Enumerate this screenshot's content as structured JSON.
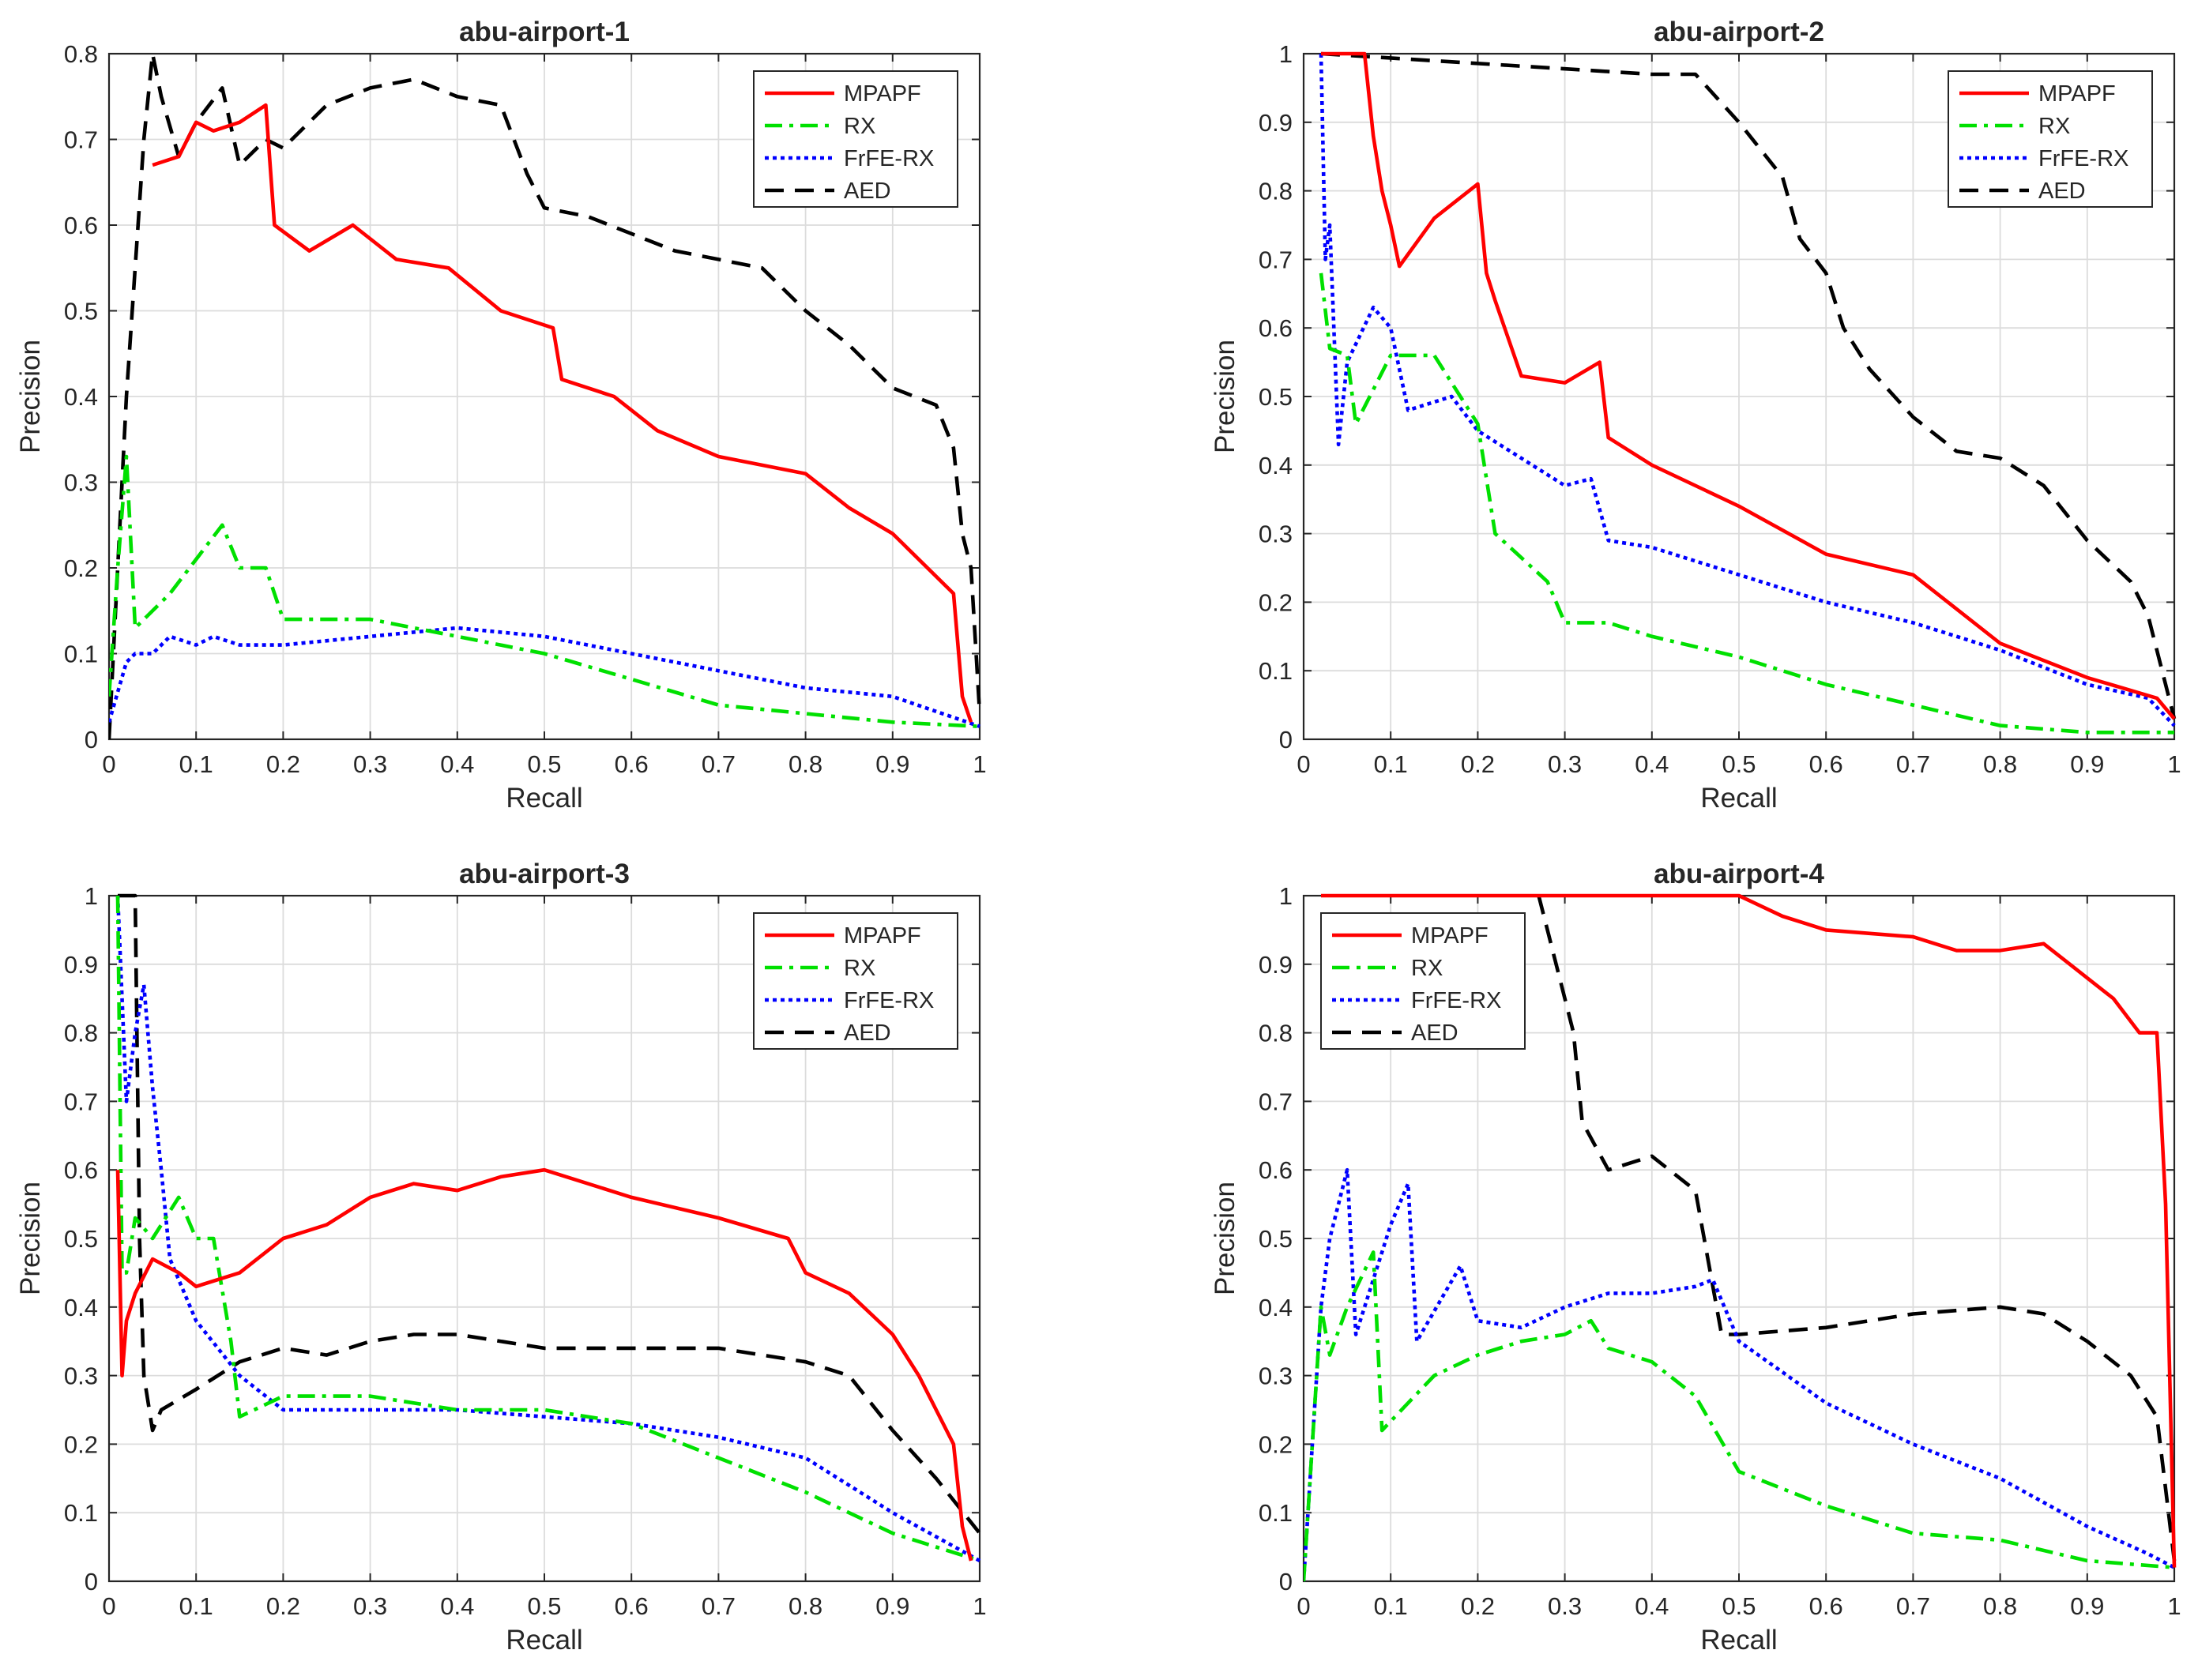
{
  "chart_data": [
    {
      "type": "line",
      "title": "abu-airport-1",
      "xlabel": "Recall",
      "ylabel": "Precision",
      "xlim": [
        0,
        1
      ],
      "ylim": [
        0,
        0.8
      ],
      "xticks": [
        "0",
        "0.1",
        "0.2",
        "0.3",
        "0.4",
        "0.5",
        "0.6",
        "0.7",
        "0.8",
        "0.9",
        "1"
      ],
      "yticks": [
        "0",
        "0.1",
        "0.2",
        "0.3",
        "0.4",
        "0.5",
        "0.6",
        "0.7",
        "0.8"
      ],
      "grid": true,
      "legend_position": "top-right",
      "series": [
        {
          "name": "MPAPF",
          "color": "#ff0000",
          "dash": "solid",
          "x": [
            0.05,
            0.08,
            0.1,
            0.12,
            0.15,
            0.18,
            0.19,
            0.23,
            0.28,
            0.33,
            0.39,
            0.45,
            0.51,
            0.52,
            0.58,
            0.63,
            0.7,
            0.8,
            0.85,
            0.9,
            0.97,
            0.98,
            0.99
          ],
          "y": [
            0.67,
            0.68,
            0.72,
            0.71,
            0.72,
            0.74,
            0.6,
            0.57,
            0.6,
            0.56,
            0.55,
            0.5,
            0.48,
            0.42,
            0.4,
            0.36,
            0.33,
            0.31,
            0.27,
            0.24,
            0.17,
            0.05,
            0.02
          ]
        },
        {
          "name": "RX",
          "color": "#00e000",
          "dash": "dashdot",
          "x": [
            0,
            0.01,
            0.02,
            0.03,
            0.05,
            0.07,
            0.1,
            0.13,
            0.15,
            0.18,
            0.2,
            0.3,
            0.4,
            0.5,
            0.6,
            0.7,
            0.8,
            0.9,
            1.0
          ],
          "y": [
            0.05,
            0.2,
            0.33,
            0.13,
            0.15,
            0.17,
            0.21,
            0.25,
            0.2,
            0.2,
            0.14,
            0.14,
            0.12,
            0.1,
            0.07,
            0.04,
            0.03,
            0.02,
            0.015
          ]
        },
        {
          "name": "FrFE-RX",
          "color": "#0000ff",
          "dash": "dotted",
          "x": [
            0,
            0.02,
            0.03,
            0.05,
            0.07,
            0.1,
            0.12,
            0.15,
            0.2,
            0.3,
            0.4,
            0.5,
            0.6,
            0.7,
            0.8,
            0.9,
            1.0
          ],
          "y": [
            0.02,
            0.09,
            0.1,
            0.1,
            0.12,
            0.11,
            0.12,
            0.11,
            0.11,
            0.12,
            0.13,
            0.12,
            0.1,
            0.08,
            0.06,
            0.05,
            0.015
          ]
        },
        {
          "name": "AED",
          "color": "#000000",
          "dash": "dashed",
          "x": [
            0,
            0.02,
            0.04,
            0.05,
            0.06,
            0.08,
            0.1,
            0.13,
            0.15,
            0.18,
            0.2,
            0.25,
            0.3,
            0.35,
            0.4,
            0.45,
            0.48,
            0.5,
            0.55,
            0.6,
            0.65,
            0.7,
            0.75,
            0.8,
            0.85,
            0.9,
            0.95,
            0.97,
            0.98,
            0.99,
            1.0
          ],
          "y": [
            0,
            0.4,
            0.7,
            0.8,
            0.75,
            0.68,
            0.72,
            0.76,
            0.67,
            0.7,
            0.69,
            0.74,
            0.76,
            0.77,
            0.75,
            0.74,
            0.66,
            0.62,
            0.61,
            0.59,
            0.57,
            0.56,
            0.55,
            0.5,
            0.46,
            0.41,
            0.39,
            0.34,
            0.24,
            0.2,
            0.03
          ]
        }
      ]
    },
    {
      "type": "line",
      "title": "abu-airport-2",
      "xlabel": "Recall",
      "ylabel": "Precision",
      "xlim": [
        0,
        1
      ],
      "ylim": [
        0,
        1
      ],
      "xticks": [
        "0",
        "0.1",
        "0.2",
        "0.3",
        "0.4",
        "0.5",
        "0.6",
        "0.7",
        "0.8",
        "0.9",
        "1"
      ],
      "yticks": [
        "0",
        "0.1",
        "0.2",
        "0.3",
        "0.4",
        "0.5",
        "0.6",
        "0.7",
        "0.8",
        "0.9",
        "1"
      ],
      "grid": true,
      "legend_position": "top-right",
      "series": [
        {
          "name": "MPAPF",
          "color": "#ff0000",
          "dash": "solid",
          "x": [
            0.02,
            0.07,
            0.08,
            0.09,
            0.1,
            0.11,
            0.15,
            0.2,
            0.21,
            0.22,
            0.25,
            0.3,
            0.34,
            0.35,
            0.4,
            0.5,
            0.6,
            0.7,
            0.8,
            0.9,
            0.98,
            1.0
          ],
          "y": [
            1.0,
            1.0,
            0.88,
            0.8,
            0.75,
            0.69,
            0.76,
            0.81,
            0.68,
            0.64,
            0.53,
            0.52,
            0.55,
            0.44,
            0.4,
            0.34,
            0.27,
            0.24,
            0.14,
            0.09,
            0.06,
            0.03
          ]
        },
        {
          "name": "RX",
          "color": "#00e000",
          "dash": "dashdot",
          "x": [
            0.02,
            0.03,
            0.05,
            0.06,
            0.1,
            0.15,
            0.2,
            0.22,
            0.28,
            0.3,
            0.35,
            0.4,
            0.5,
            0.6,
            0.7,
            0.8,
            0.9,
            1.0
          ],
          "y": [
            0.68,
            0.57,
            0.56,
            0.46,
            0.56,
            0.56,
            0.46,
            0.3,
            0.23,
            0.17,
            0.17,
            0.15,
            0.12,
            0.08,
            0.05,
            0.02,
            0.01,
            0.01
          ]
        },
        {
          "name": "FrFE-RX",
          "color": "#0000ff",
          "dash": "dotted",
          "x": [
            0.02,
            0.025,
            0.03,
            0.04,
            0.05,
            0.08,
            0.1,
            0.12,
            0.17,
            0.2,
            0.25,
            0.3,
            0.33,
            0.35,
            0.4,
            0.5,
            0.6,
            0.7,
            0.8,
            0.9,
            0.97,
            1.0
          ],
          "y": [
            1.0,
            0.7,
            0.75,
            0.43,
            0.55,
            0.63,
            0.6,
            0.48,
            0.5,
            0.45,
            0.41,
            0.37,
            0.38,
            0.29,
            0.28,
            0.24,
            0.2,
            0.17,
            0.13,
            0.08,
            0.06,
            0.02
          ]
        },
        {
          "name": "AED",
          "color": "#000000",
          "dash": "dashed",
          "x": [
            0.02,
            0.4,
            0.45,
            0.5,
            0.55,
            0.57,
            0.6,
            0.62,
            0.65,
            0.7,
            0.75,
            0.8,
            0.85,
            0.9,
            0.95,
            0.97,
            0.99,
            1.0
          ],
          "y": [
            1.0,
            0.97,
            0.97,
            0.9,
            0.82,
            0.73,
            0.68,
            0.6,
            0.54,
            0.47,
            0.42,
            0.41,
            0.37,
            0.29,
            0.23,
            0.18,
            0.08,
            0.03
          ]
        }
      ]
    },
    {
      "type": "line",
      "title": "abu-airport-3",
      "xlabel": "Recall",
      "ylabel": "Precision",
      "xlim": [
        0,
        1
      ],
      "ylim": [
        0,
        1
      ],
      "xticks": [
        "0",
        "0.1",
        "0.2",
        "0.3",
        "0.4",
        "0.5",
        "0.6",
        "0.7",
        "0.8",
        "0.9",
        "1"
      ],
      "yticks": [
        "0",
        "0.1",
        "0.2",
        "0.3",
        "0.4",
        "0.5",
        "0.6",
        "0.7",
        "0.8",
        "0.9",
        "1"
      ],
      "grid": true,
      "legend_position": "top-right",
      "series": [
        {
          "name": "MPAPF",
          "color": "#ff0000",
          "dash": "solid",
          "x": [
            0.01,
            0.015,
            0.02,
            0.03,
            0.05,
            0.08,
            0.1,
            0.15,
            0.2,
            0.25,
            0.3,
            0.35,
            0.4,
            0.45,
            0.5,
            0.6,
            0.7,
            0.78,
            0.8,
            0.85,
            0.9,
            0.93,
            0.95,
            0.97,
            0.98,
            0.99
          ],
          "y": [
            0.6,
            0.3,
            0.38,
            0.42,
            0.47,
            0.45,
            0.43,
            0.45,
            0.5,
            0.52,
            0.56,
            0.58,
            0.57,
            0.59,
            0.6,
            0.56,
            0.53,
            0.5,
            0.45,
            0.42,
            0.36,
            0.3,
            0.25,
            0.2,
            0.08,
            0.03
          ]
        },
        {
          "name": "RX",
          "color": "#00e000",
          "dash": "dashdot",
          "x": [
            0.01,
            0.015,
            0.02,
            0.03,
            0.05,
            0.08,
            0.1,
            0.12,
            0.14,
            0.15,
            0.2,
            0.3,
            0.4,
            0.5,
            0.6,
            0.7,
            0.8,
            0.9,
            1.0
          ],
          "y": [
            1.0,
            0.45,
            0.45,
            0.53,
            0.5,
            0.56,
            0.5,
            0.5,
            0.35,
            0.24,
            0.27,
            0.27,
            0.25,
            0.25,
            0.23,
            0.18,
            0.13,
            0.07,
            0.03
          ]
        },
        {
          "name": "FrFE-RX",
          "color": "#0000ff",
          "dash": "dotted",
          "x": [
            0.01,
            0.02,
            0.03,
            0.04,
            0.05,
            0.06,
            0.07,
            0.1,
            0.15,
            0.2,
            0.3,
            0.4,
            0.5,
            0.6,
            0.7,
            0.8,
            0.9,
            1.0
          ],
          "y": [
            1.0,
            0.7,
            0.8,
            0.87,
            0.72,
            0.6,
            0.47,
            0.38,
            0.3,
            0.25,
            0.25,
            0.25,
            0.24,
            0.23,
            0.21,
            0.18,
            0.1,
            0.03
          ]
        },
        {
          "name": "AED",
          "color": "#000000",
          "dash": "dashed",
          "x": [
            0.01,
            0.03,
            0.035,
            0.04,
            0.05,
            0.06,
            0.1,
            0.15,
            0.2,
            0.25,
            0.3,
            0.35,
            0.4,
            0.5,
            0.6,
            0.7,
            0.8,
            0.85,
            0.9,
            0.95,
            1.0
          ],
          "y": [
            1.0,
            1.0,
            0.5,
            0.3,
            0.22,
            0.25,
            0.28,
            0.32,
            0.34,
            0.33,
            0.35,
            0.36,
            0.36,
            0.34,
            0.34,
            0.34,
            0.32,
            0.3,
            0.22,
            0.15,
            0.07
          ]
        }
      ]
    },
    {
      "type": "line",
      "title": "abu-airport-4",
      "xlabel": "Recall",
      "ylabel": "Precision",
      "xlim": [
        0,
        1
      ],
      "ylim": [
        0,
        1
      ],
      "xticks": [
        "0",
        "0.1",
        "0.2",
        "0.3",
        "0.4",
        "0.5",
        "0.6",
        "0.7",
        "0.8",
        "0.9",
        "1"
      ],
      "yticks": [
        "0",
        "0.1",
        "0.2",
        "0.3",
        "0.4",
        "0.5",
        "0.6",
        "0.7",
        "0.8",
        "0.9",
        "1"
      ],
      "grid": true,
      "legend_position": "top-left",
      "series": [
        {
          "name": "MPAPF",
          "color": "#ff0000",
          "dash": "solid",
          "x": [
            0.02,
            0.5,
            0.55,
            0.6,
            0.7,
            0.75,
            0.8,
            0.85,
            0.88,
            0.9,
            0.93,
            0.96,
            0.98,
            0.99,
            1.0
          ],
          "y": [
            1.0,
            1.0,
            0.97,
            0.95,
            0.94,
            0.92,
            0.92,
            0.93,
            0.9,
            0.88,
            0.85,
            0.8,
            0.8,
            0.55,
            0.02
          ]
        },
        {
          "name": "RX",
          "color": "#00e000",
          "dash": "dashdot",
          "x": [
            0,
            0.02,
            0.03,
            0.05,
            0.08,
            0.09,
            0.12,
            0.15,
            0.2,
            0.25,
            0.3,
            0.33,
            0.35,
            0.4,
            0.45,
            0.5,
            0.6,
            0.7,
            0.8,
            0.9,
            1.0
          ],
          "y": [
            0,
            0.4,
            0.33,
            0.4,
            0.48,
            0.22,
            0.26,
            0.3,
            0.33,
            0.35,
            0.36,
            0.38,
            0.34,
            0.32,
            0.27,
            0.16,
            0.11,
            0.07,
            0.06,
            0.03,
            0.02
          ]
        },
        {
          "name": "FrFE-RX",
          "color": "#0000ff",
          "dash": "dotted",
          "x": [
            0,
            0.02,
            0.03,
            0.05,
            0.06,
            0.1,
            0.12,
            0.13,
            0.18,
            0.2,
            0.25,
            0.3,
            0.35,
            0.4,
            0.45,
            0.47,
            0.5,
            0.6,
            0.7,
            0.8,
            0.9,
            0.97,
            1.0
          ],
          "y": [
            0,
            0.4,
            0.5,
            0.6,
            0.36,
            0.52,
            0.58,
            0.35,
            0.46,
            0.38,
            0.37,
            0.4,
            0.42,
            0.42,
            0.43,
            0.44,
            0.35,
            0.26,
            0.2,
            0.15,
            0.08,
            0.04,
            0.02
          ]
        },
        {
          "name": "AED",
          "color": "#000000",
          "dash": "dashed",
          "x": [
            0.27,
            0.28,
            0.3,
            0.31,
            0.32,
            0.35,
            0.4,
            0.45,
            0.48,
            0.5,
            0.6,
            0.7,
            0.8,
            0.85,
            0.9,
            0.95,
            0.98,
            1.0
          ],
          "y": [
            1.0,
            0.95,
            0.85,
            0.8,
            0.67,
            0.6,
            0.62,
            0.57,
            0.36,
            0.36,
            0.37,
            0.39,
            0.4,
            0.39,
            0.35,
            0.3,
            0.24,
            0.03
          ]
        }
      ]
    }
  ]
}
